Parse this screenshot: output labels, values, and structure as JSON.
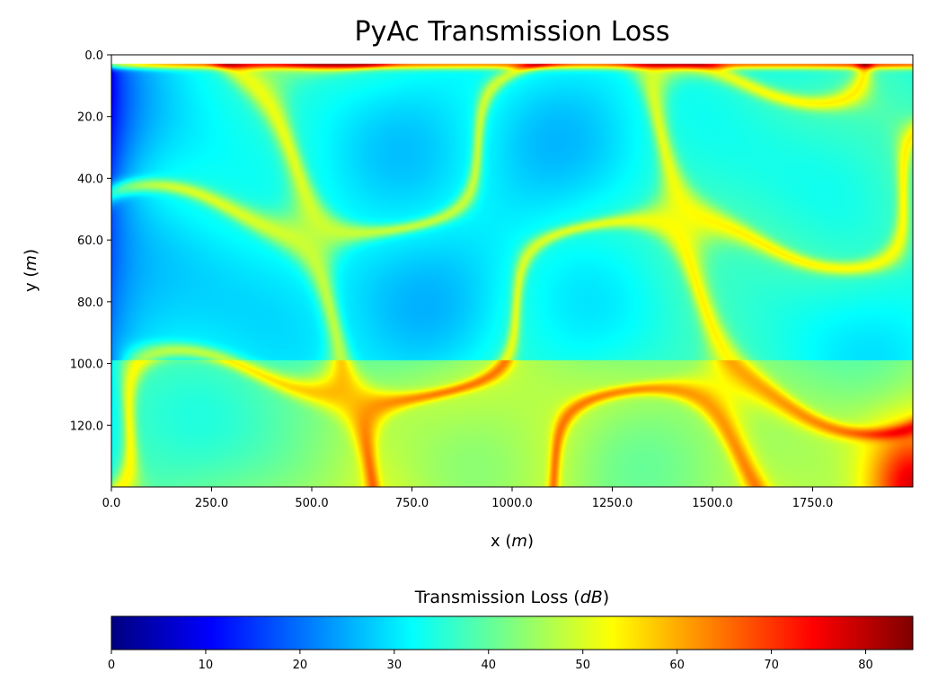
{
  "chart_data": {
    "type": "heatmap",
    "title": "PyAc Transmission Loss",
    "xlabel": "x (m)",
    "xlabel_text": "x (",
    "xlabel_unit": "m",
    "xlabel_close": ")",
    "ylabel": "y (m)",
    "ylabel_text": "y (",
    "ylabel_unit": "m",
    "ylabel_close": ")",
    "xlim": [
      0,
      2000
    ],
    "ylim": [
      140,
      0
    ],
    "y_inverted": true,
    "xticks": [
      "0.0",
      "250.0",
      "500.0",
      "750.0",
      "1000.0",
      "1250.0",
      "1500.0",
      "1750.0"
    ],
    "xtick_values": [
      0,
      250,
      500,
      750,
      1000,
      1250,
      1500,
      1750
    ],
    "yticks": [
      "0.0",
      "20.0",
      "40.0",
      "60.0",
      "80.0",
      "100.0",
      "120.0"
    ],
    "ytick_values": [
      0,
      20,
      40,
      60,
      80,
      100,
      120
    ],
    "colormap": "jet",
    "colorbar": {
      "title": "Transmission Loss (dB)",
      "title_text": "Transmission Loss (",
      "title_unit": "dB",
      "title_close": ")",
      "range": [
        0,
        85
      ],
      "orientation": "horizontal",
      "ticks": [
        "0",
        "10",
        "20",
        "30",
        "40",
        "50",
        "60",
        "70",
        "80"
      ],
      "tick_values": [
        0,
        10,
        20,
        30,
        40,
        50,
        60,
        70,
        80
      ]
    },
    "colors": {
      "jet_stops": [
        "#00007f",
        "#0000ff",
        "#007fff",
        "#00ffff",
        "#7fff7f",
        "#ffff00",
        "#ff7f00",
        "#ff0000",
        "#7f0000"
      ]
    },
    "source_depth_m": 3,
    "surface_y_m": 3,
    "interface_depth_m": 99,
    "field_description": "Transmission loss interference pattern: low loss near source at x=0, lobed interference structure above interface at 99 m, higher loss in lower layer and at far-right bottom"
  }
}
